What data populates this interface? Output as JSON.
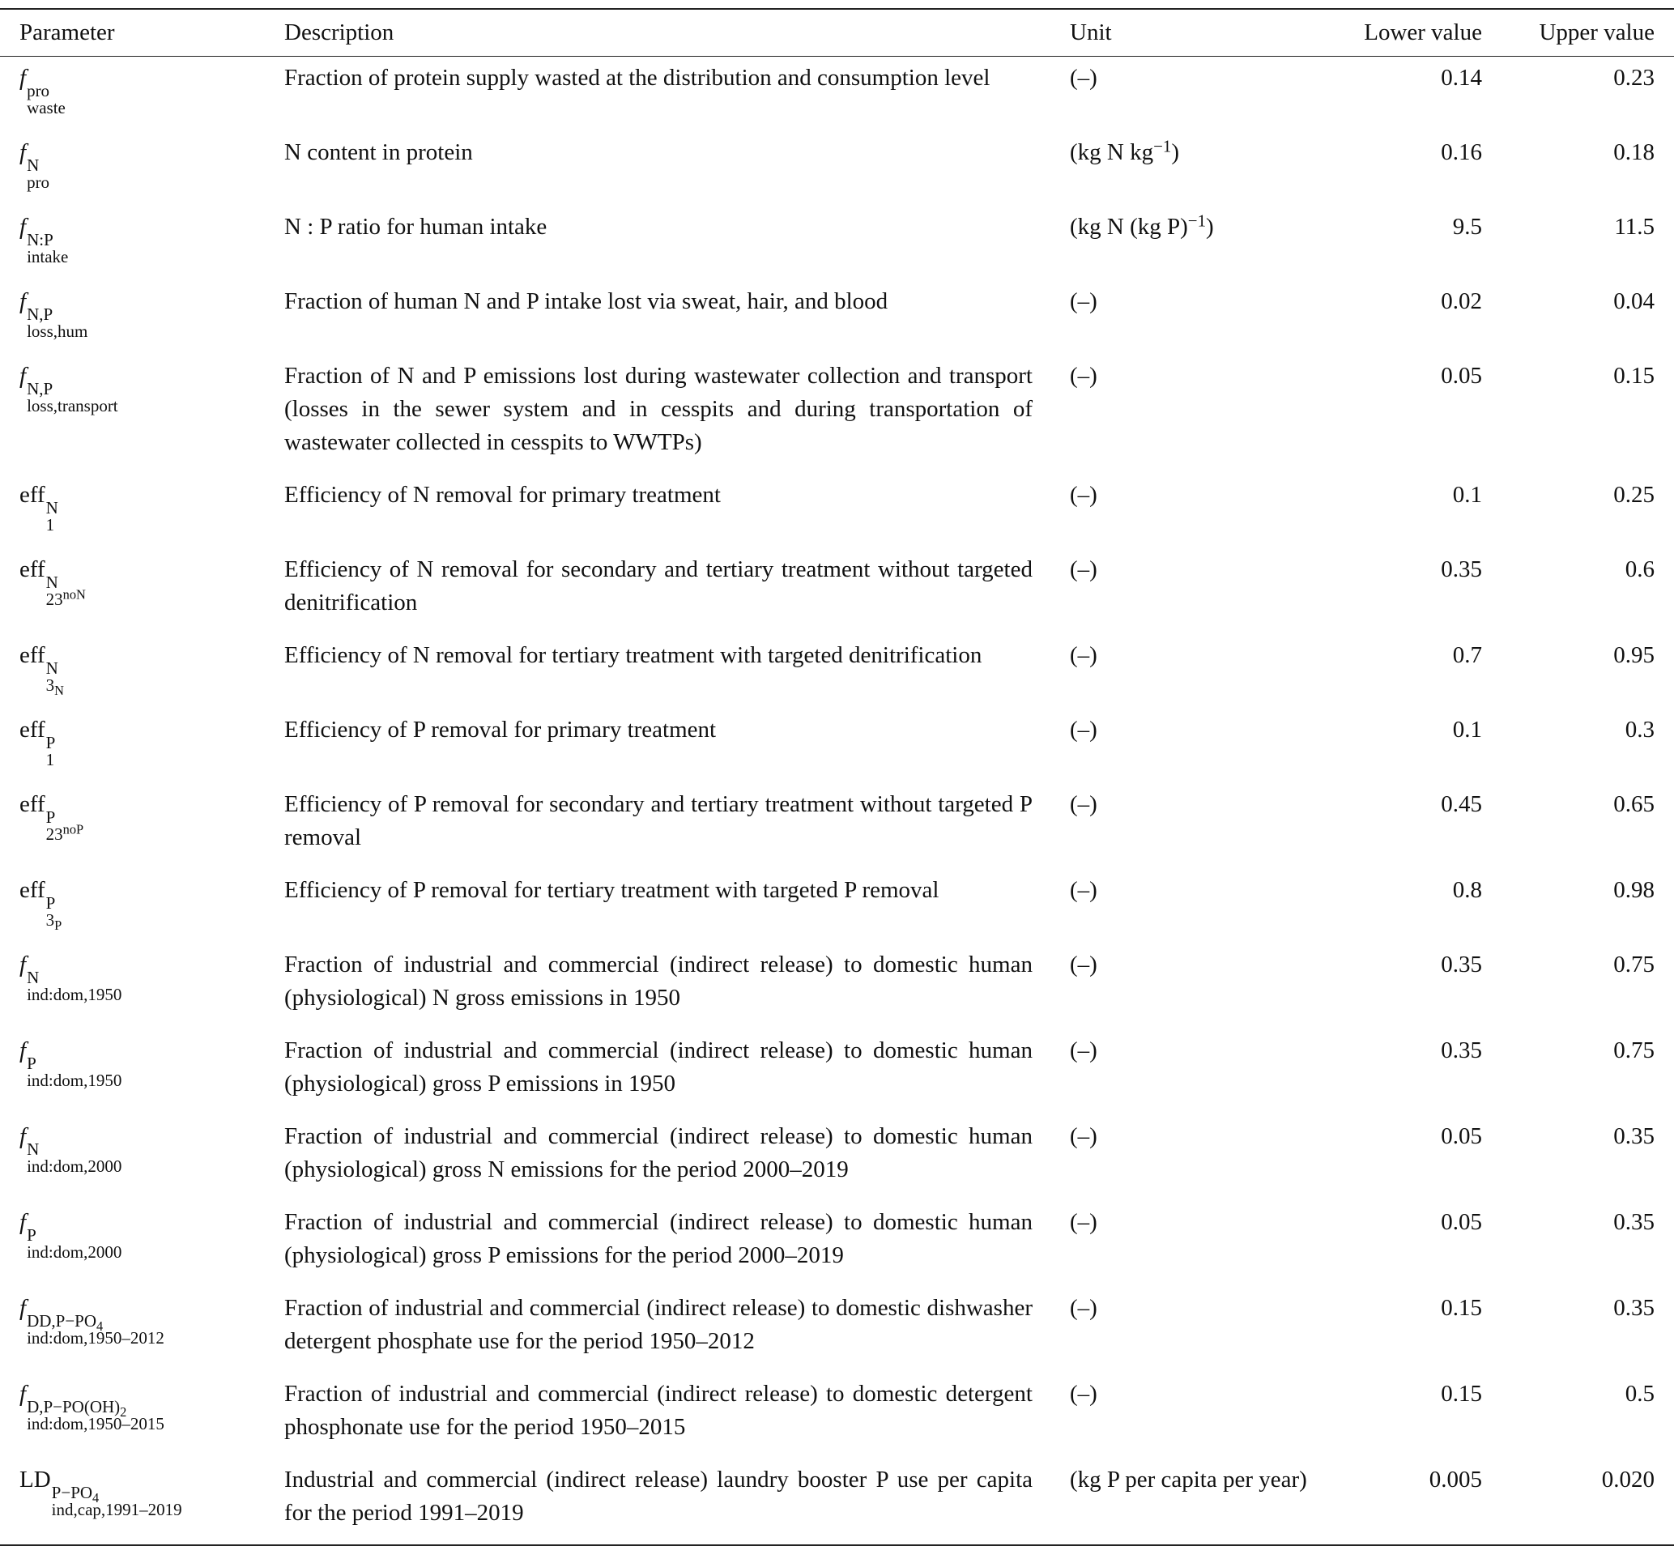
{
  "table": {
    "columns": [
      "Parameter",
      "Description",
      "Unit",
      "Lower value",
      "Upper value"
    ],
    "rows": [
      {
        "param": {
          "base": "f",
          "italic": true,
          "sup": [
            "pro"
          ],
          "sub": [
            "waste"
          ]
        },
        "description": "Fraction of protein supply wasted at the distribution and consumption level",
        "unit": [
          "(–)"
        ],
        "lower": "0.14",
        "upper": "0.23"
      },
      {
        "param": {
          "base": "f",
          "italic": true,
          "sup": [
            "N"
          ],
          "sub": [
            "pro"
          ]
        },
        "description": "N content in protein",
        "unit": [
          "(kg N kg",
          {
            "text": "−1",
            "shift": "sup"
          },
          ")"
        ],
        "lower": "0.16",
        "upper": "0.18"
      },
      {
        "param": {
          "base": "f",
          "italic": true,
          "sup": [
            "N:P"
          ],
          "sub": [
            "intake"
          ]
        },
        "description": "N : P ratio for human intake",
        "unit": [
          "(kg N (kg P)",
          {
            "text": "−1",
            "shift": "sup"
          },
          ")"
        ],
        "lower": "9.5",
        "upper": "11.5"
      },
      {
        "param": {
          "base": "f",
          "italic": true,
          "sup": [
            "N,P"
          ],
          "sub": [
            "loss,hum"
          ]
        },
        "description": "Fraction of human N and P intake lost via sweat, hair, and blood",
        "unit": [
          "(–)"
        ],
        "lower": "0.02",
        "upper": "0.04"
      },
      {
        "param": {
          "base": "f",
          "italic": true,
          "sup": [
            "N,P"
          ],
          "sub": [
            "loss,transport"
          ]
        },
        "description": "Fraction of N and P emissions lost during wastewater collection and transport (losses in the sewer system and in cesspits and during transportation of wastewater collected in cesspits to WWTPs)",
        "unit": [
          "(–)"
        ],
        "lower": "0.05",
        "upper": "0.15"
      },
      {
        "param": {
          "base": "eff",
          "italic": false,
          "sup": [
            "N"
          ],
          "sub": [
            "1"
          ]
        },
        "description": "Efficiency of N removal for primary treatment",
        "unit": [
          "(–)"
        ],
        "lower": "0.1",
        "upper": "0.25"
      },
      {
        "param": {
          "base": "eff",
          "italic": false,
          "sup": [
            "N"
          ],
          "sub": [
            "23",
            {
              "text": "noN",
              "shift": "sup"
            }
          ]
        },
        "description": "Efficiency of N removal for secondary and tertiary treatment without targeted denitrification",
        "unit": [
          "(–)"
        ],
        "lower": "0.35",
        "upper": "0.6"
      },
      {
        "param": {
          "base": "eff",
          "italic": false,
          "sup": [
            "N"
          ],
          "sub": [
            "3",
            {
              "text": "N",
              "shift": "sub"
            }
          ]
        },
        "description": "Efficiency of N removal for tertiary treatment with targeted denitrification",
        "unit": [
          "(–)"
        ],
        "lower": "0.7",
        "upper": "0.95"
      },
      {
        "param": {
          "base": "eff",
          "italic": false,
          "sup": [
            "P"
          ],
          "sub": [
            "1"
          ]
        },
        "description": "Efficiency of P removal for primary treatment",
        "unit": [
          "(–)"
        ],
        "lower": "0.1",
        "upper": "0.3"
      },
      {
        "param": {
          "base": "eff",
          "italic": false,
          "sup": [
            "P"
          ],
          "sub": [
            "23",
            {
              "text": "noP",
              "shift": "sup"
            }
          ]
        },
        "description": "Efficiency of P removal for secondary and tertiary treatment without targeted P removal",
        "unit": [
          "(–)"
        ],
        "lower": "0.45",
        "upper": "0.65"
      },
      {
        "param": {
          "base": "eff",
          "italic": false,
          "sup": [
            "P"
          ],
          "sub": [
            "3",
            {
              "text": "P",
              "shift": "sub"
            }
          ]
        },
        "description": "Efficiency of P removal for tertiary treatment with targeted P removal",
        "unit": [
          "(–)"
        ],
        "lower": "0.8",
        "upper": "0.98"
      },
      {
        "param": {
          "base": "f",
          "italic": true,
          "sup": [
            "N"
          ],
          "sub": [
            "ind:dom,1950"
          ]
        },
        "description": "Fraction of industrial and commercial (indirect release) to domestic human (physiological) N gross emissions in 1950",
        "unit": [
          "(–)"
        ],
        "lower": "0.35",
        "upper": "0.75"
      },
      {
        "param": {
          "base": "f",
          "italic": true,
          "sup": [
            "P"
          ],
          "sub": [
            "ind:dom,1950"
          ]
        },
        "description": "Fraction of industrial and commercial (indirect release) to domestic human (physiological) gross P emissions in 1950",
        "unit": [
          "(–)"
        ],
        "lower": "0.35",
        "upper": "0.75"
      },
      {
        "param": {
          "base": "f",
          "italic": true,
          "sup": [
            "N"
          ],
          "sub": [
            "ind:dom,2000"
          ]
        },
        "description": "Fraction of industrial and commercial (indirect release) to domestic human (physiological) gross N emissions for the period 2000–2019",
        "unit": [
          "(–)"
        ],
        "lower": "0.05",
        "upper": "0.35"
      },
      {
        "param": {
          "base": "f",
          "italic": true,
          "sup": [
            "P"
          ],
          "sub": [
            "ind:dom,2000"
          ]
        },
        "description": "Fraction of industrial and commercial (indirect release) to domestic human (physiological) gross P emissions for the period 2000–2019",
        "unit": [
          "(–)"
        ],
        "lower": "0.05",
        "upper": "0.35"
      },
      {
        "param": {
          "base": "f",
          "italic": true,
          "sup": [
            "DD,P−PO",
            {
              "text": "4",
              "shift": "sub"
            }
          ],
          "sub": [
            "ind:dom,1950–2012"
          ]
        },
        "description": "Fraction of industrial and commercial (indirect release) to domestic dishwasher detergent phosphate use for the period 1950–2012",
        "unit": [
          "(–)"
        ],
        "lower": "0.15",
        "upper": "0.35"
      },
      {
        "param": {
          "base": "f",
          "italic": true,
          "sup": [
            "D,P−PO(OH)",
            {
              "text": "2",
              "shift": "sub"
            }
          ],
          "sub": [
            "ind:dom,1950–2015"
          ]
        },
        "description": "Fraction of industrial and commercial (indirect release) to domestic detergent phosphonate use for the period 1950–2015",
        "unit": [
          "(–)"
        ],
        "lower": "0.15",
        "upper": "0.5"
      },
      {
        "param": {
          "base": "LD",
          "italic": false,
          "sup": [
            "P−PO",
            {
              "text": "4",
              "shift": "sub"
            }
          ],
          "sub": [
            "ind,cap,1991–2019"
          ]
        },
        "description": "Industrial and commercial (indirect release) laundry booster P use per capita for the period 1991–2019",
        "unit": [
          "(kg P per capita per year)"
        ],
        "lower": "0.005",
        "upper": "0.020"
      }
    ]
  }
}
